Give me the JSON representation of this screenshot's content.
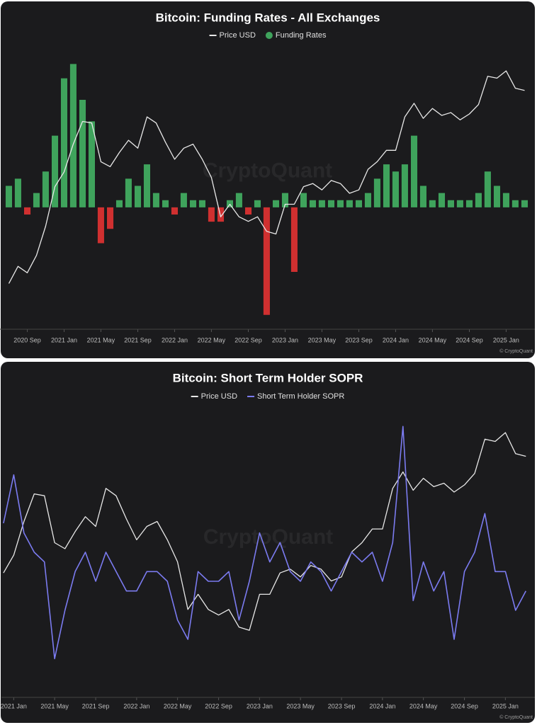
{
  "chart_data": [
    {
      "type": "combo",
      "title": "Bitcoin: Funding Rates - All Exchanges",
      "watermark": "CryptoQuant",
      "credit": "© CryptoQuant",
      "x": [
        2020.5,
        2020.583,
        2020.667,
        2020.75,
        2020.833,
        2020.917,
        2021.0,
        2021.083,
        2021.167,
        2021.25,
        2021.333,
        2021.417,
        2021.5,
        2021.583,
        2021.667,
        2021.75,
        2021.833,
        2021.917,
        2022.0,
        2022.083,
        2022.167,
        2022.25,
        2022.333,
        2022.417,
        2022.5,
        2022.583,
        2022.667,
        2022.75,
        2022.833,
        2022.917,
        2023.0,
        2023.083,
        2023.167,
        2023.25,
        2023.333,
        2023.417,
        2023.5,
        2023.583,
        2023.667,
        2023.75,
        2023.833,
        2023.917,
        2024.0,
        2024.083,
        2024.167,
        2024.25,
        2024.333,
        2024.417,
        2024.5,
        2024.583,
        2024.667,
        2024.75,
        2024.833,
        2024.917,
        2025.0,
        2025.083,
        2025.167
      ],
      "xlim": [
        2020.42,
        2025.26
      ],
      "xticks": [
        {
          "value": 2020.667,
          "label": "2020 Sep"
        },
        {
          "value": 2021.0,
          "label": "2021 Jan"
        },
        {
          "value": 2021.333,
          "label": "2021 May"
        },
        {
          "value": 2021.667,
          "label": "2021 Sep"
        },
        {
          "value": 2022.0,
          "label": "2022 Jan"
        },
        {
          "value": 2022.333,
          "label": "2022 May"
        },
        {
          "value": 2022.667,
          "label": "2022 Sep"
        },
        {
          "value": 2023.0,
          "label": "2023 Jan"
        },
        {
          "value": 2023.333,
          "label": "2023 May"
        },
        {
          "value": 2023.667,
          "label": "2023 Sep"
        },
        {
          "value": 2024.0,
          "label": "2024 Jan"
        },
        {
          "value": 2024.333,
          "label": "2024 May"
        },
        {
          "value": 2024.667,
          "label": "2024 Sep"
        },
        {
          "value": 2025.0,
          "label": "2025 Jan"
        }
      ],
      "ylim": [
        -0.17,
        0.23
      ],
      "y2lim": [
        5700,
        140000
      ],
      "y2_log": true,
      "series": [
        {
          "name": "Price USD",
          "type": "line",
          "axis": "y2",
          "color": "#e8e8e8",
          "values": [
            9500,
            11500,
            10700,
            13000,
            18000,
            28000,
            33000,
            45000,
            58000,
            57000,
            37000,
            35000,
            41000,
            47000,
            43000,
            61000,
            57000,
            46000,
            38000,
            43000,
            45000,
            38000,
            31000,
            20000,
            23000,
            20000,
            19000,
            20000,
            17000,
            16500,
            23000,
            23000,
            28000,
            29000,
            27000,
            30000,
            29000,
            26000,
            27000,
            34000,
            37000,
            42000,
            42000,
            61000,
            71000,
            60000,
            67000,
            62000,
            64000,
            59000,
            63000,
            70000,
            96000,
            94000,
            102000,
            84000,
            82000
          ]
        },
        {
          "name": "Funding Rates",
          "type": "bar",
          "color": "#3fa35c",
          "negative_color": "#d03030",
          "values": [
            0.03,
            0.04,
            -0.01,
            0.02,
            0.05,
            0.1,
            0.18,
            0.2,
            0.15,
            0.12,
            -0.05,
            -0.03,
            0.01,
            0.04,
            0.03,
            0.06,
            0.02,
            0.01,
            -0.01,
            0.02,
            0.01,
            0.01,
            -0.02,
            -0.02,
            0.01,
            0.02,
            -0.01,
            0.01,
            -0.15,
            0.01,
            0.02,
            -0.09,
            0.02,
            0.01,
            0.01,
            0.01,
            0.01,
            0.01,
            0.01,
            0.02,
            0.04,
            0.06,
            0.05,
            0.06,
            0.1,
            0.03,
            0.01,
            0.02,
            0.01,
            0.01,
            0.01,
            0.02,
            0.05,
            0.03,
            0.02,
            0.01,
            0.01
          ]
        }
      ]
    },
    {
      "type": "combo",
      "title": "Bitcoin: Short Term Holder SOPR",
      "watermark": "CryptoQuant",
      "credit": "© CryptoQuant",
      "x": [
        2020.917,
        2021.0,
        2021.083,
        2021.167,
        2021.25,
        2021.333,
        2021.417,
        2021.5,
        2021.583,
        2021.667,
        2021.75,
        2021.833,
        2021.917,
        2022.0,
        2022.083,
        2022.167,
        2022.25,
        2022.333,
        2022.417,
        2022.5,
        2022.583,
        2022.667,
        2022.75,
        2022.833,
        2022.917,
        2023.0,
        2023.083,
        2023.167,
        2023.25,
        2023.333,
        2023.417,
        2023.5,
        2023.583,
        2023.667,
        2023.75,
        2023.833,
        2023.917,
        2024.0,
        2024.083,
        2024.167,
        2024.25,
        2024.333,
        2024.417,
        2024.5,
        2024.583,
        2024.667,
        2024.75,
        2024.833,
        2024.917,
        2025.0,
        2025.083,
        2025.167
      ],
      "xlim": [
        2020.9,
        2025.24
      ],
      "xticks": [
        {
          "value": 2021.0,
          "label": "2021 Jan"
        },
        {
          "value": 2021.333,
          "label": "2021 May"
        },
        {
          "value": 2021.667,
          "label": "2021 Sep"
        },
        {
          "value": 2022.0,
          "label": "2022 Jan"
        },
        {
          "value": 2022.333,
          "label": "2022 May"
        },
        {
          "value": 2022.667,
          "label": "2022 Sep"
        },
        {
          "value": 2023.0,
          "label": "2023 Jan"
        },
        {
          "value": 2023.333,
          "label": "2023 May"
        },
        {
          "value": 2023.667,
          "label": "2023 Sep"
        },
        {
          "value": 2024.0,
          "label": "2024 Jan"
        },
        {
          "value": 2024.333,
          "label": "2024 May"
        },
        {
          "value": 2024.667,
          "label": "2024 Sep"
        },
        {
          "value": 2025.0,
          "label": "2025 Jan"
        }
      ],
      "ylim": [
        0.87,
        1.17
      ],
      "y2lim": [
        8900,
        129000
      ],
      "y2_log": true,
      "series": [
        {
          "name": "Price USD",
          "type": "line",
          "axis": "y2",
          "color": "#e8e8e8",
          "values": [
            28000,
            33000,
            45000,
            58000,
            57000,
            37000,
            35000,
            41000,
            47000,
            43000,
            61000,
            57000,
            46000,
            38000,
            43000,
            45000,
            38000,
            31000,
            20000,
            23000,
            20000,
            19000,
            20000,
            17000,
            16500,
            23000,
            23000,
            28000,
            29000,
            27000,
            30000,
            29000,
            26000,
            27000,
            34000,
            37000,
            42000,
            42000,
            61000,
            71000,
            60000,
            67000,
            62000,
            64000,
            59000,
            63000,
            70000,
            96000,
            94000,
            102000,
            84000,
            82000
          ]
        },
        {
          "name": "Short Term Holder SOPR",
          "type": "line",
          "color": "#7b7bf0",
          "values": [
            1.05,
            1.1,
            1.04,
            1.02,
            1.01,
            0.91,
            0.96,
            1.0,
            1.02,
            0.99,
            1.02,
            1.0,
            0.98,
            0.98,
            1.0,
            1.0,
            0.99,
            0.95,
            0.93,
            1.0,
            0.99,
            0.99,
            1.0,
            0.95,
            0.99,
            1.04,
            1.01,
            1.03,
            1.0,
            0.99,
            1.01,
            1.0,
            0.98,
            1.0,
            1.02,
            1.01,
            1.02,
            0.99,
            1.03,
            1.15,
            0.97,
            1.01,
            0.98,
            1.0,
            0.93,
            1.0,
            1.02,
            1.06,
            1.0,
            1.0,
            0.96,
            0.98
          ]
        }
      ]
    }
  ]
}
